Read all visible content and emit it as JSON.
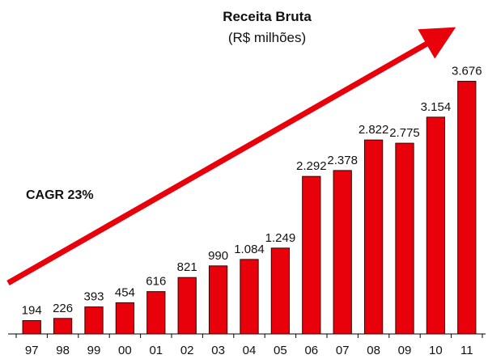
{
  "chart_data": {
    "type": "bar",
    "title": "Receita Bruta",
    "subtitle": "(R$ milhões)",
    "annotation": "CAGR 23%",
    "categories": [
      "97",
      "98",
      "99",
      "00",
      "01",
      "02",
      "03",
      "04",
      "05",
      "06",
      "07",
      "08",
      "09",
      "10",
      "11"
    ],
    "values": [
      194,
      226,
      393,
      454,
      616,
      821,
      990,
      1084,
      1249,
      2292,
      2378,
      2822,
      2775,
      3154,
      3676
    ],
    "value_labels": [
      "194",
      "226",
      "393",
      "454",
      "616",
      "821",
      "990",
      "1.084",
      "1.249",
      "2.292",
      "2.378",
      "2.822",
      "2.775",
      "3.154",
      "3.676"
    ],
    "color": "#e8000b",
    "ylim": [
      0,
      4000
    ]
  }
}
